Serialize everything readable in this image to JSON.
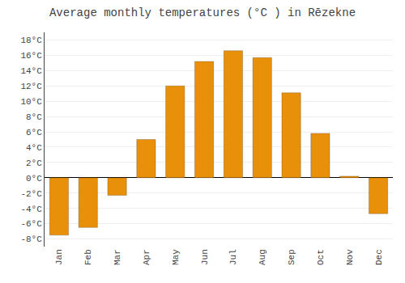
{
  "chart_data": {
    "type": "bar",
    "title": "Average monthly temperatures (°C ) in Rēzekne",
    "categories": [
      "Jan",
      "Feb",
      "Mar",
      "Apr",
      "May",
      "Jun",
      "Jul",
      "Aug",
      "Sep",
      "Oct",
      "Nov",
      "Dec"
    ],
    "values": [
      -7.5,
      -6.5,
      -2.3,
      5.0,
      12.0,
      15.2,
      16.6,
      15.7,
      11.1,
      5.8,
      0.2,
      -4.7
    ],
    "color": "#E8900A",
    "ylim": [
      -9,
      19
    ],
    "yticks": [
      {
        "value": -8,
        "label": "-8°C"
      },
      {
        "value": -6,
        "label": "-6°C"
      },
      {
        "value": -4,
        "label": "-4°C"
      },
      {
        "value": -2,
        "label": "-2°C"
      },
      {
        "value": 0,
        "label": "0°C"
      },
      {
        "value": 2,
        "label": "2°C"
      },
      {
        "value": 4,
        "label": "4°C"
      },
      {
        "value": 6,
        "label": "6°C"
      },
      {
        "value": 8,
        "label": "8°C"
      },
      {
        "value": 10,
        "label": "10°C"
      },
      {
        "value": 12,
        "label": "12°C"
      },
      {
        "value": 14,
        "label": "14°C"
      },
      {
        "value": 16,
        "label": "16°C"
      },
      {
        "value": 18,
        "label": "18°C"
      }
    ],
    "grid": true
  }
}
